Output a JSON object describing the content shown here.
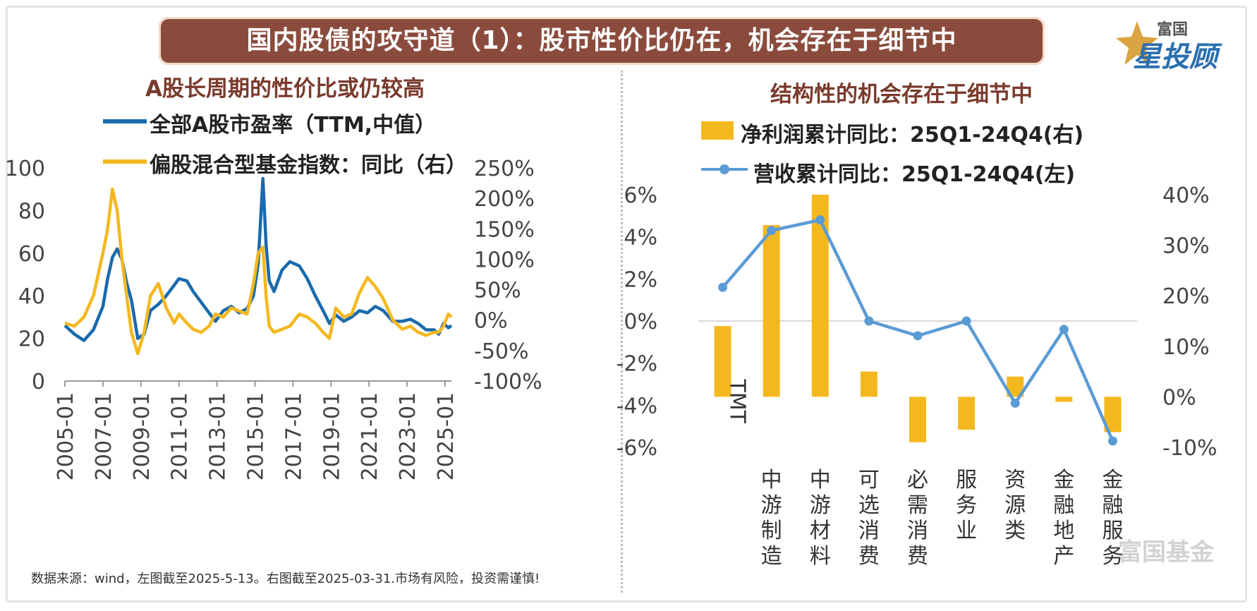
{
  "title": "国内股债的攻守道（1）：股市性价比仍在，机会存在于细节中",
  "logo": {
    "top": "富国",
    "main": "星投顾"
  },
  "watermark": "富国基金",
  "source_note": "数据来源：wind，左图截至2025-5-13。右图截至2025-03-31.市场有风险，投资需谨慎!",
  "left_chart": {
    "subtitle": "A股长周期的性价比或仍较高",
    "legend": {
      "pe": "全部A股市盈率（TTM,中值）",
      "fund": "偏股混合型基金指数：同比（右）"
    },
    "colors": {
      "pe": "#1a6aac",
      "fund": "#f4b81f"
    }
  },
  "right_chart": {
    "subtitle": "结构性的机会存在于细节中",
    "legend": {
      "profit": "净利润累计同比：25Q1-24Q4(右)",
      "revenue": "营收累计同比：25Q1-24Q4(左)"
    },
    "colors": {
      "profit": "#f4b81f",
      "revenue": "#5b9bd5"
    }
  },
  "chart_data": [
    {
      "type": "line",
      "title": "A股长周期的性价比或仍较高",
      "x_ticks": [
        "2005-01",
        "2007-01",
        "2009-01",
        "2011-01",
        "2013-01",
        "2015-01",
        "2017-01",
        "2019-01",
        "2021-01",
        "2023-01",
        "2025-01"
      ],
      "xlim": [
        "2005-01",
        "2025-05"
      ],
      "ylim_left": [
        0,
        100
      ],
      "y_ticks_left": [
        "0",
        "20",
        "40",
        "60",
        "80",
        "100"
      ],
      "ylim_right": [
        -100,
        250
      ],
      "y_ticks_right": [
        "-100%",
        "-50%",
        "0%",
        "50%",
        "100%",
        "150%",
        "200%",
        "250%"
      ],
      "series": [
        {
          "name": "全部A股市盈率（TTM,中值）",
          "axis": "left",
          "x": [
            "2005-01",
            "2005-07",
            "2006-01",
            "2006-07",
            "2007-01",
            "2007-04",
            "2007-07",
            "2007-10",
            "2008-01",
            "2008-04",
            "2008-07",
            "2008-11",
            "2009-03",
            "2009-07",
            "2009-12",
            "2010-05",
            "2010-10",
            "2011-01",
            "2011-06",
            "2011-10",
            "2012-03",
            "2012-08",
            "2012-12",
            "2013-05",
            "2013-10",
            "2014-03",
            "2014-08",
            "2014-12",
            "2015-03",
            "2015-06",
            "2015-08",
            "2015-10",
            "2016-01",
            "2016-06",
            "2016-11",
            "2017-05",
            "2017-10",
            "2018-03",
            "2018-08",
            "2018-12",
            "2019-04",
            "2019-09",
            "2020-02",
            "2020-07",
            "2020-12",
            "2021-05",
            "2021-10",
            "2022-04",
            "2022-10",
            "2023-03",
            "2023-08",
            "2024-01",
            "2024-06",
            "2024-09",
            "2024-12",
            "2025-03",
            "2025-05"
          ],
          "y": [
            26,
            22,
            19,
            24,
            35,
            48,
            58,
            62,
            57,
            46,
            38,
            20,
            22,
            33,
            36,
            40,
            45,
            48,
            47,
            42,
            37,
            32,
            28,
            33,
            35,
            32,
            34,
            40,
            55,
            95,
            64,
            47,
            42,
            52,
            56,
            54,
            48,
            40,
            33,
            27,
            31,
            28,
            30,
            33,
            32,
            35,
            33,
            28,
            28,
            29,
            27,
            24,
            24,
            22,
            27,
            25,
            26
          ]
        },
        {
          "name": "偏股混合型基金指数：同比（右）",
          "axis": "right",
          "x": [
            "2005-01",
            "2005-07",
            "2006-01",
            "2006-07",
            "2007-01",
            "2007-04",
            "2007-07",
            "2007-10",
            "2008-01",
            "2008-04",
            "2008-07",
            "2008-11",
            "2009-03",
            "2009-07",
            "2009-12",
            "2010-05",
            "2010-10",
            "2011-01",
            "2011-06",
            "2011-10",
            "2012-03",
            "2012-08",
            "2012-12",
            "2013-05",
            "2013-10",
            "2014-03",
            "2014-08",
            "2014-12",
            "2015-03",
            "2015-06",
            "2015-08",
            "2015-10",
            "2016-01",
            "2016-06",
            "2016-11",
            "2017-05",
            "2017-10",
            "2018-03",
            "2018-08",
            "2018-12",
            "2019-04",
            "2019-09",
            "2020-02",
            "2020-07",
            "2020-12",
            "2021-05",
            "2021-10",
            "2022-04",
            "2022-10",
            "2023-03",
            "2023-08",
            "2024-01",
            "2024-06",
            "2024-09",
            "2024-12",
            "2025-03",
            "2025-05"
          ],
          "y": [
            -5,
            -10,
            5,
            40,
            110,
            150,
            215,
            180,
            100,
            40,
            -20,
            -55,
            -20,
            40,
            60,
            20,
            -5,
            10,
            -5,
            -15,
            -20,
            -10,
            10,
            5,
            20,
            15,
            10,
            60,
            110,
            120,
            40,
            -10,
            -20,
            -15,
            -10,
            10,
            5,
            -5,
            -20,
            -30,
            20,
            5,
            10,
            45,
            70,
            55,
            35,
            0,
            -15,
            -10,
            -20,
            -25,
            -20,
            -20,
            -10,
            10,
            5
          ]
        }
      ]
    },
    {
      "type": "bar",
      "title": "结构性的机会存在于细节中",
      "categories": [
        "TMT",
        "中游制造",
        "中游材料",
        "可选消费",
        "必需消费",
        "服务业",
        "资源类",
        "金融地产",
        "金融服务"
      ],
      "ylim_left": [
        -6,
        6
      ],
      "y_ticks_left": [
        "-6%",
        "-4%",
        "-2%",
        "0%",
        "2%",
        "4%",
        "6%"
      ],
      "ylim_right": [
        -10,
        40
      ],
      "y_ticks_right": [
        "-10%",
        "0%",
        "10%",
        "20%",
        "30%",
        "40%"
      ],
      "series": [
        {
          "name": "净利润累计同比：25Q1-24Q4(右)",
          "type": "bar",
          "axis": "right",
          "values": [
            14,
            34,
            40,
            5,
            -9,
            -6.5,
            4,
            -1,
            -7
          ]
        },
        {
          "name": "营收累计同比：25Q1-24Q4(左)",
          "type": "line",
          "axis": "left",
          "values": [
            1.6,
            4.3,
            4.8,
            0.0,
            -0.7,
            0.0,
            -3.9,
            -0.4,
            -5.7
          ]
        }
      ]
    }
  ]
}
